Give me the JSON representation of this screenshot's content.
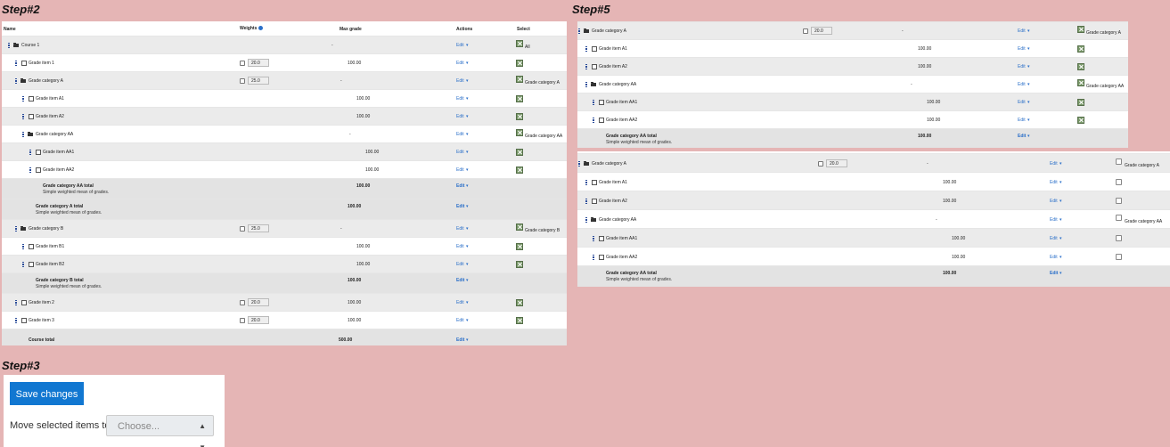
{
  "step2_title": "Step#2",
  "step3_title": "Step#3",
  "step5_title": "Step#5",
  "headers": {
    "name": "Name",
    "weights": "Weights",
    "max_grade": "Max grade",
    "actions": "Actions",
    "select": "Select"
  },
  "edit_label": "Edit",
  "step2_rows": [
    {
      "kind": "folder",
      "name": "Course 1",
      "indent": 0,
      "max": "-",
      "select": "All"
    },
    {
      "kind": "item",
      "name": "Grade item 1",
      "indent": 1,
      "weight": "20.0",
      "max": "100.00"
    },
    {
      "kind": "folder",
      "name": "Grade category A",
      "indent": 1,
      "weight": "25.0",
      "max": "-",
      "select": "Grade category A"
    },
    {
      "kind": "item",
      "name": "Grade item A1",
      "indent": 2,
      "max": "100.00"
    },
    {
      "kind": "item",
      "name": "Grade item A2",
      "indent": 2,
      "max": "100.00"
    },
    {
      "kind": "folder",
      "name": "Grade category AA",
      "indent": 2,
      "max": "-",
      "select": "Grade category AA"
    },
    {
      "kind": "item",
      "name": "Grade item AA1",
      "indent": 3,
      "max": "100.00"
    },
    {
      "kind": "item",
      "name": "Grade item AA2",
      "indent": 3,
      "max": "100.00"
    },
    {
      "kind": "total",
      "name": "Grade category AA total",
      "sub": "Simple weighted mean of grades.",
      "indent": 3,
      "max": "100.00"
    },
    {
      "kind": "total",
      "name": "Grade category A total",
      "sub": "Simple weighted mean of grades.",
      "indent": 2,
      "max": "100.00"
    },
    {
      "kind": "folder",
      "name": "Grade category B",
      "indent": 1,
      "weight": "25.0",
      "max": "-",
      "select": "Grade category B"
    },
    {
      "kind": "item",
      "name": "Grade item B1",
      "indent": 2,
      "max": "100.00"
    },
    {
      "kind": "item",
      "name": "Grade item B2",
      "indent": 2,
      "max": "100.00"
    },
    {
      "kind": "total",
      "name": "Grade category B total",
      "sub": "Simple weighted mean of grades.",
      "indent": 2,
      "max": "100.00"
    },
    {
      "kind": "item",
      "name": "Grade item 2",
      "indent": 1,
      "weight": "20.0",
      "max": "100.00"
    },
    {
      "kind": "item",
      "name": "Grade item 3",
      "indent": 1,
      "weight": "20.0",
      "max": "100.00"
    },
    {
      "kind": "total",
      "name": "Course total",
      "sub": "",
      "indent": 1,
      "max": "500.00"
    }
  ],
  "step5_rows": [
    {
      "kind": "folder",
      "name": "Grade category A",
      "indent": 0,
      "weight": "20.0",
      "max": "-",
      "select": "Grade category A"
    },
    {
      "kind": "item",
      "name": "Grade item A1",
      "indent": 1,
      "max": "100.00"
    },
    {
      "kind": "item",
      "name": "Grade item A2",
      "indent": 1,
      "max": "100.00"
    },
    {
      "kind": "folder",
      "name": "Grade category AA",
      "indent": 1,
      "max": "-",
      "select": "Grade category AA"
    },
    {
      "kind": "item",
      "name": "Grade item AA1",
      "indent": 2,
      "max": "100.00"
    },
    {
      "kind": "item",
      "name": "Grade item AA2",
      "indent": 2,
      "max": "100.00"
    },
    {
      "kind": "total",
      "name": "Grade category AA total",
      "sub": "Simple weighted mean of grades.",
      "indent": 2,
      "max": "100.00"
    }
  ],
  "step5b_rows": [
    {
      "kind": "folder",
      "name": "Grade category A",
      "indent": 0,
      "weight": "20.0",
      "max": "-",
      "select": "Grade category A"
    },
    {
      "kind": "item",
      "name": "Grade item A1",
      "indent": 1,
      "max": "100.00"
    },
    {
      "kind": "item",
      "name": "Grade item A2",
      "indent": 1,
      "max": "100.00"
    },
    {
      "kind": "folder",
      "name": "Grade category AA",
      "indent": 1,
      "max": "-",
      "select": "Grade category AA"
    },
    {
      "kind": "item",
      "name": "Grade item AA1",
      "indent": 2,
      "max": "100.00"
    },
    {
      "kind": "item",
      "name": "Grade item AA2",
      "indent": 2,
      "max": "100.00"
    },
    {
      "kind": "total",
      "name": "Grade category AA total",
      "sub": "Simple weighted mean of grades.",
      "indent": 2,
      "max": "100.00"
    }
  ],
  "step3": {
    "save_label": "Save changes",
    "move_label": "Move selected items to",
    "choose_label": "Choose..."
  }
}
